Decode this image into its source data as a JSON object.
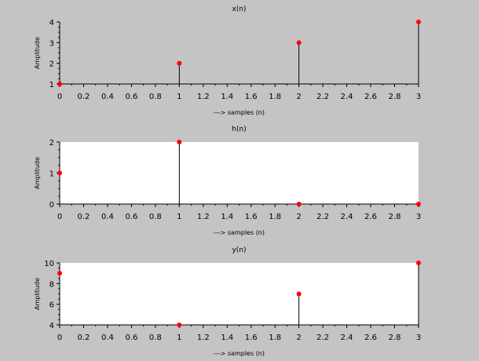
{
  "figure": {
    "background": "#c4c4c4"
  },
  "chart_data": [
    {
      "type": "stem",
      "title": "x(n)",
      "xlabel": "---> samples (n)",
      "ylabel": "Amplitude",
      "xlim": [
        0,
        3
      ],
      "ylim": [
        1,
        4
      ],
      "xticks": [
        "0",
        "0.2",
        "0.4",
        "0.6",
        "0.8",
        "1",
        "1.2",
        "1.4",
        "1.6",
        "1.8",
        "2",
        "2.2",
        "2.4",
        "2.6",
        "2.8",
        "3"
      ],
      "yticks": [
        "1",
        "2",
        "3",
        "4"
      ],
      "x": [
        0,
        1,
        2,
        3
      ],
      "values": [
        1,
        2,
        3,
        4
      ],
      "plot_background": "#c4c4c4",
      "stem_color": "#000000",
      "marker_color": "#ff0000"
    },
    {
      "type": "stem",
      "title": "h(n)",
      "xlabel": "---> samples (n)",
      "ylabel": "Amplitude",
      "xlim": [
        0,
        3
      ],
      "ylim": [
        0,
        2
      ],
      "xticks": [
        "0",
        "0.2",
        "0.4",
        "0.6",
        "0.8",
        "1",
        "1.2",
        "1.4",
        "1.6",
        "1.8",
        "2",
        "2.2",
        "2.4",
        "2.6",
        "2.8",
        "3"
      ],
      "yticks": [
        "0",
        "1",
        "2"
      ],
      "x": [
        0,
        1,
        2,
        3
      ],
      "values": [
        1,
        2,
        0,
        0
      ],
      "plot_background": "#ffffff",
      "stem_color": "#000000",
      "marker_color": "#ff0000"
    },
    {
      "type": "stem",
      "title": "y(n)",
      "xlabel": "---> samples (n)",
      "ylabel": "Amplitude",
      "xlim": [
        0,
        3
      ],
      "ylim": [
        4,
        10
      ],
      "xticks": [
        "0",
        "0.2",
        "0.4",
        "0.6",
        "0.8",
        "1",
        "1.2",
        "1.4",
        "1.6",
        "1.8",
        "2",
        "2.2",
        "2.4",
        "2.6",
        "2.8",
        "3"
      ],
      "yticks": [
        "4",
        "6",
        "8",
        "10"
      ],
      "x": [
        0,
        1,
        2,
        3
      ],
      "values": [
        9,
        4,
        7,
        10
      ],
      "plot_background": "#ffffff",
      "stem_color": "#000000",
      "marker_color": "#ff0000"
    }
  ]
}
